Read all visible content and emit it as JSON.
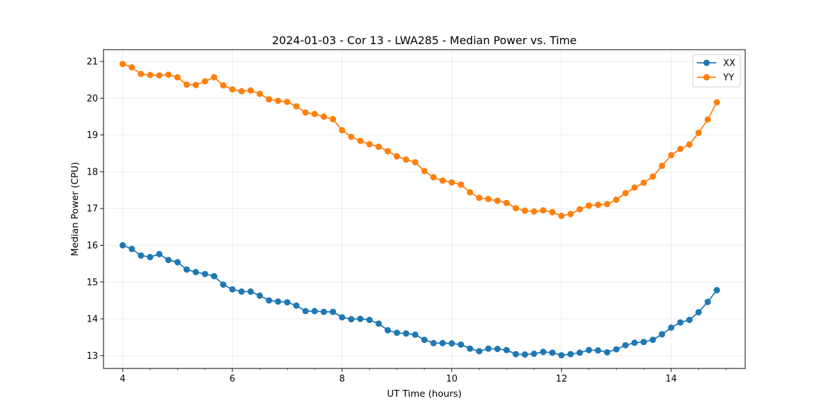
{
  "chart_data": {
    "type": "line",
    "title": "2024-01-03 - Cor 13 - LWA285 - Median Power vs. Time",
    "xlabel": "UT Time (hours)",
    "ylabel": "Median Power (CPU)",
    "xlim": [
      3.65,
      15.35
    ],
    "ylim": [
      12.65,
      21.32
    ],
    "xticks": [
      4,
      6,
      8,
      10,
      12,
      14
    ],
    "xtick_labels": [
      "4",
      "6",
      "8",
      "10",
      "12",
      "14"
    ],
    "yticks": [
      13,
      14,
      15,
      16,
      17,
      18,
      19,
      20,
      21
    ],
    "ytick_labels": [
      "13",
      "14",
      "15",
      "16",
      "17",
      "18",
      "19",
      "20",
      "21"
    ],
    "grid": true,
    "legend_position": "top-right",
    "x": [
      4.0,
      4.167,
      4.333,
      4.5,
      4.667,
      4.833,
      5.0,
      5.167,
      5.333,
      5.5,
      5.667,
      5.833,
      6.0,
      6.167,
      6.333,
      6.5,
      6.667,
      6.833,
      7.0,
      7.167,
      7.333,
      7.5,
      7.667,
      7.833,
      8.0,
      8.167,
      8.333,
      8.5,
      8.667,
      8.833,
      9.0,
      9.167,
      9.333,
      9.5,
      9.667,
      9.833,
      10.0,
      10.167,
      10.333,
      10.5,
      10.667,
      10.833,
      11.0,
      11.167,
      11.333,
      11.5,
      11.667,
      11.833,
      12.0,
      12.167,
      12.333,
      12.5,
      12.667,
      12.833,
      13.0,
      13.167,
      13.333,
      13.5,
      13.667,
      13.833,
      14.0,
      14.167,
      14.333,
      14.5,
      14.667,
      14.833
    ],
    "series": [
      {
        "name": "XX",
        "color": "#1f77b4",
        "values": [
          16.0,
          15.9,
          15.72,
          15.68,
          15.76,
          15.6,
          15.54,
          15.34,
          15.27,
          15.22,
          15.16,
          14.93,
          14.8,
          14.74,
          14.74,
          14.63,
          14.5,
          14.47,
          14.45,
          14.36,
          14.21,
          14.21,
          14.19,
          14.19,
          14.04,
          13.99,
          14.0,
          13.97,
          13.87,
          13.69,
          13.62,
          13.6,
          13.57,
          13.43,
          13.34,
          13.34,
          13.33,
          13.3,
          13.19,
          13.12,
          13.19,
          13.18,
          13.15,
          13.04,
          13.03,
          13.05,
          13.1,
          13.08,
          13.01,
          13.04,
          13.08,
          13.15,
          13.14,
          13.09,
          13.17,
          13.28,
          13.35,
          13.37,
          13.43,
          13.58,
          13.76,
          13.9,
          13.97,
          14.18,
          14.46,
          14.78
        ]
      },
      {
        "name": "YY",
        "color": "#ff7f0e",
        "values": [
          20.93,
          20.84,
          20.66,
          20.63,
          20.62,
          20.64,
          20.57,
          20.37,
          20.36,
          20.46,
          20.57,
          20.35,
          20.24,
          20.19,
          20.21,
          20.12,
          19.97,
          19.93,
          19.9,
          19.78,
          19.61,
          19.57,
          19.5,
          19.43,
          19.13,
          18.95,
          18.84,
          18.75,
          18.68,
          18.56,
          18.42,
          18.33,
          18.26,
          18.02,
          17.85,
          17.76,
          17.71,
          17.65,
          17.44,
          17.29,
          17.26,
          17.21,
          17.15,
          17.01,
          16.94,
          16.92,
          16.95,
          16.9,
          16.8,
          16.85,
          16.98,
          17.08,
          17.1,
          17.12,
          17.24,
          17.42,
          17.57,
          17.7,
          17.87,
          18.16,
          18.45,
          18.62,
          18.74,
          19.06,
          19.42,
          19.89
        ]
      }
    ]
  }
}
